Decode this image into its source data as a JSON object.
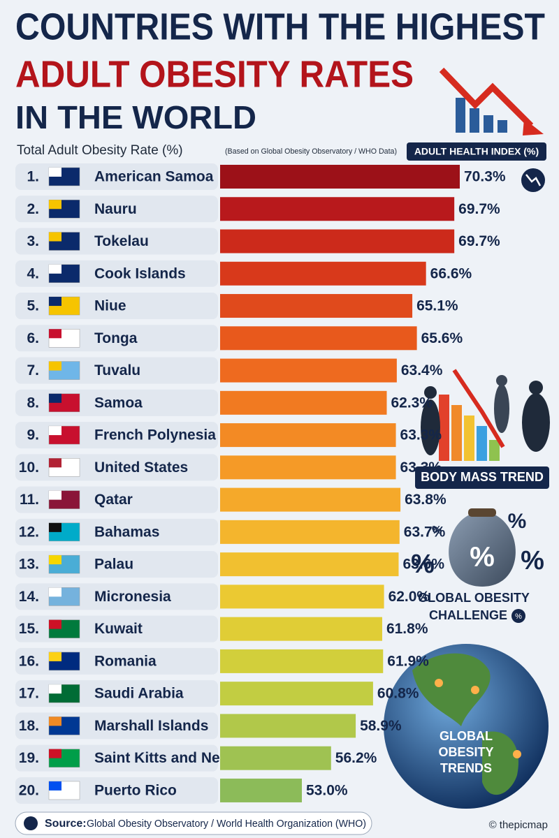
{
  "chart_data": {
    "type": "bar",
    "orientation": "horizontal",
    "title": "COUNTRIES WITH THE HIGHEST",
    "title_highlight": "ADULT OBESITY RATES",
    "title_end": "IN THE WORLD",
    "subtitle": "Total Adult Obesity Rate (%)",
    "subtitle_note": "(Based on Global Obesity Observatory / WHO Data)",
    "badge": "ADULT HEALTH INDEX (%)",
    "ranks": [
      "1.",
      "2.",
      "3.",
      "4.",
      "5.",
      "6.",
      "7.",
      "8.",
      "9.",
      "10.",
      "11.",
      "12.",
      "13.",
      "14.",
      "15.",
      "16.",
      "17.",
      "18.",
      "19.",
      "20."
    ],
    "categories": [
      "American Samoa",
      "Nauru",
      "Tokelau",
      "Cook Islands",
      "Niue",
      "Tonga",
      "Tuvalu",
      "Samoa",
      "French Polynesia",
      "United States",
      "Qatar",
      "Bahamas",
      "Palau",
      "Micronesia",
      "Kuwait",
      "Romania",
      "Saudi Arabia",
      "Marshall Islands",
      "Saint Kitts and Nevis",
      "Puerto Rico"
    ],
    "values": [
      70.3,
      69.7,
      69.7,
      66.6,
      65.1,
      65.6,
      63.4,
      62.3,
      63.3,
      63.3,
      63.8,
      63.7,
      63.6,
      62.0,
      61.8,
      61.9,
      60.8,
      58.9,
      56.2,
      53.0
    ],
    "value_labels": [
      "70.3%",
      "69.7%",
      "69.7%",
      "66.6%",
      "65.1%",
      "65.6%",
      "63.4%",
      "62.3%",
      "63.3%",
      "63.3%",
      "63.8%",
      "63.7%",
      "63.6%",
      "62.0%",
      "61.8%",
      "61.9%",
      "60.8%",
      "58.9%",
      "56.2%",
      "53.0%"
    ],
    "colors": [
      "#9c1118",
      "#b8191c",
      "#cc2a1b",
      "#d8391b",
      "#e04a1c",
      "#e8591c",
      "#ee6a1f",
      "#f17a21",
      "#f38a24",
      "#f59a27",
      "#f5a92a",
      "#f4b52d",
      "#f1c030",
      "#ebc932",
      "#e0cd36",
      "#d2cf3b",
      "#c2cd42",
      "#b1c84a",
      "#9fc252",
      "#8cbb59"
    ],
    "annotations": [
      "BODY MASS TREND",
      "GLOBAL OBESITY",
      "CHALLENGE",
      "GLOBAL",
      "OBESITY",
      "TRENDS"
    ],
    "source_label": "Source:",
    "source": "Global Obesity Observatory / World Health Organization (WHO)",
    "credit": "© thepicmap"
  }
}
